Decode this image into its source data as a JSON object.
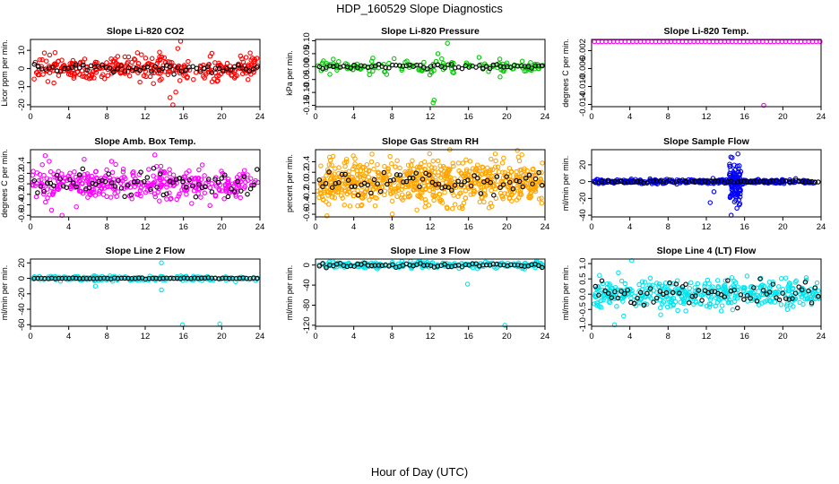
{
  "figure": {
    "title": "HDP_160529  Slope Diagnostics",
    "xlabel": "Hour of Day (UTC)"
  },
  "chart_data": [
    {
      "id": "co2",
      "type": "scatter",
      "title": "Slope Li-820 CO2",
      "ylabel": "Licor ppm per min.",
      "xlim": [
        0,
        24
      ],
      "xticks": [
        0,
        4,
        8,
        12,
        16,
        20,
        24
      ],
      "ylim": [
        -21,
        16
      ],
      "yticks": [
        -20,
        -10,
        0,
        10
      ],
      "color": "#ff0000",
      "n": 330,
      "ref_n": 60,
      "base": 0,
      "spread": 3.2,
      "ref_spread": 1.2,
      "outliers": [
        [
          15.7,
          15
        ],
        [
          15.4,
          11
        ],
        [
          14.9,
          -20
        ],
        [
          15.2,
          -13
        ],
        [
          14.6,
          -16
        ],
        [
          13.5,
          9
        ]
      ]
    },
    {
      "id": "pressure",
      "type": "scatter",
      "title": "Slope Li-820 Pressure",
      "ylabel": "kPa per min.",
      "xlim": [
        0,
        24
      ],
      "xticks": [
        0,
        4,
        8,
        12,
        16,
        20,
        24
      ],
      "ylim": [
        -0.155,
        0.105
      ],
      "yticks": [
        -0.15,
        -0.1,
        -0.05,
        0.0,
        0.05,
        0.1
      ],
      "color": "#00cc00",
      "n": 140,
      "ref_n": 65,
      "base": 0,
      "spread": 0.012,
      "ref_spread": 0.004,
      "outliers": [
        [
          12.3,
          -0.14
        ],
        [
          12.4,
          -0.13
        ],
        [
          13.8,
          0.09
        ],
        [
          12.8,
          0.05
        ],
        [
          13.2,
          0.03
        ],
        [
          19.3,
          -0.04
        ],
        [
          1.5,
          -0.03
        ]
      ]
    },
    {
      "id": "temp",
      "type": "scatter",
      "title": "Slope Li-820 Temp.",
      "ylabel": "degrees C per min.",
      "xlim": [
        0,
        24
      ],
      "xticks": [
        0,
        4,
        8,
        12,
        16,
        20,
        24
      ],
      "ylim": [
        -0.0145,
        0.0005
      ],
      "yticks": [
        -0.014,
        -0.01,
        -0.006,
        -0.002
      ],
      "color": "#ff00ff",
      "mode": "line_row",
      "row_value": 0,
      "n": 60,
      "ref_n": 0,
      "base": 0,
      "spread": 0,
      "ref_spread": 0,
      "outliers": [
        [
          18,
          -0.0142
        ]
      ]
    },
    {
      "id": "ambtemp",
      "type": "scatter",
      "title": "Slope Amb. Box Temp.",
      "ylabel": "degrees C per min.",
      "xlim": [
        0,
        24
      ],
      "xticks": [
        0,
        4,
        8,
        12,
        16,
        20,
        24
      ],
      "ylim": [
        -0.63,
        0.65
      ],
      "yticks": [
        -0.6,
        -0.4,
        -0.2,
        0.0,
        0.2,
        0.4
      ],
      "color": "#ff00ff",
      "n": 360,
      "ref_n": 70,
      "base": 0,
      "spread": 0.16,
      "ref_spread": 0.14,
      "outliers": [
        [
          3.3,
          -0.6
        ],
        [
          13,
          0.55
        ],
        [
          2.2,
          -0.5
        ]
      ]
    },
    {
      "id": "rh",
      "type": "scatter",
      "title": "Slope Gas Stream RH",
      "ylabel": "percent per min.",
      "xlim": [
        0,
        24
      ],
      "xticks": [
        0,
        4,
        8,
        12,
        16,
        20,
        24
      ],
      "ylim": [
        -0.65,
        0.63
      ],
      "yticks": [
        -0.6,
        -0.4,
        -0.2,
        0.0,
        0.2,
        0.4
      ],
      "color": "#ffa500",
      "n": 700,
      "ref_n": 70,
      "base": 0,
      "spread": 0.2,
      "ref_spread": 0.1,
      "outliers": [
        [
          1.2,
          -0.63
        ],
        [
          18.8,
          0.55
        ],
        [
          7.8,
          0.5
        ]
      ]
    },
    {
      "id": "sampleflow",
      "type": "scatter",
      "title": "Slope Sample Flow",
      "ylabel": "ml/min per min.",
      "xlim": [
        0,
        24
      ],
      "xticks": [
        0,
        4,
        8,
        12,
        16,
        20,
        24
      ],
      "ylim": [
        -42,
        38
      ],
      "yticks": [
        -40,
        -20,
        0,
        20
      ],
      "color": "#0000ff",
      "n": 330,
      "ref_n": 70,
      "base": 0,
      "spread": 1.2,
      "ref_spread": 0.8,
      "burst": {
        "center": 15,
        "width": 0.6,
        "amp": 22,
        "n": 90
      },
      "outliers": [
        [
          15.3,
          33
        ],
        [
          14.6,
          -40
        ],
        [
          12.8,
          -12
        ],
        [
          12.4,
          -25
        ]
      ]
    },
    {
      "id": "line2",
      "type": "scatter",
      "title": "Slope Line 2 Flow",
      "ylabel": "ml/min per min.",
      "xlim": [
        0,
        24
      ],
      "xticks": [
        0,
        4,
        8,
        12,
        16,
        20,
        24
      ],
      "ylim": [
        -62,
        25
      ],
      "yticks": [
        -60,
        -40,
        -20,
        0,
        20
      ],
      "color": "#00e5ee",
      "n": 260,
      "ref_n": 65,
      "base": 0,
      "spread": 1.5,
      "ref_spread": 0.3,
      "outliers": [
        [
          15.9,
          -60
        ],
        [
          19.8,
          -59
        ],
        [
          13.7,
          20
        ],
        [
          13.7,
          -15
        ],
        [
          6.8,
          -10
        ]
      ]
    },
    {
      "id": "line3",
      "type": "scatter",
      "title": "Slope Line 3 Flow",
      "ylabel": "ml/min per min.",
      "xlim": [
        0,
        24
      ],
      "xticks": [
        0,
        4,
        8,
        12,
        16,
        20,
        24
      ],
      "ylim": [
        -122,
        12
      ],
      "yticks": [
        -120,
        -80,
        -40,
        0
      ],
      "color": "#00e5ee",
      "n": 220,
      "ref_n": 65,
      "base": 0,
      "spread": 3,
      "ref_spread": 2,
      "outliers": [
        [
          19.8,
          -120
        ],
        [
          15.9,
          -38
        ],
        [
          1.8,
          8
        ]
      ]
    },
    {
      "id": "line4",
      "type": "scatter",
      "title": "Slope Line 4 (LT) Flow",
      "ylabel": "ml/min per min.",
      "xlim": [
        0,
        24
      ],
      "xticks": [
        0,
        4,
        8,
        12,
        16,
        20,
        24
      ],
      "ylim": [
        -1.05,
        1.15
      ],
      "yticks": [
        -1.0,
        -0.5,
        0.0,
        0.5,
        1.0
      ],
      "color": "#00e5ee",
      "n": 420,
      "ref_n": 70,
      "base": 0,
      "spread": 0.22,
      "ref_spread": 0.2,
      "outliers": [
        [
          4.2,
          1.1
        ],
        [
          2.4,
          -1.0
        ],
        [
          2.8,
          0.7
        ]
      ]
    }
  ]
}
